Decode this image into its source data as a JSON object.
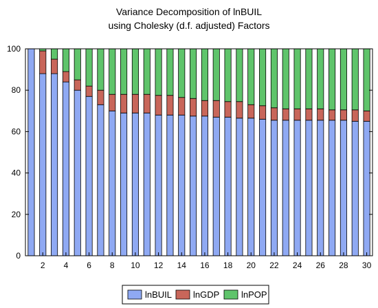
{
  "chart_data": {
    "type": "bar",
    "stacked": true,
    "title": [
      "Variance Decomposition of lnBUIL",
      "using Cholesky (d.f. adjusted) Factors"
    ],
    "xlabel": "",
    "ylabel": "",
    "ylim": [
      0,
      100
    ],
    "yticks": [
      0,
      20,
      40,
      60,
      80,
      100
    ],
    "xticks": [
      2,
      4,
      6,
      8,
      10,
      12,
      14,
      16,
      18,
      20,
      22,
      24,
      26,
      28,
      30
    ],
    "categories": [
      1,
      2,
      3,
      4,
      5,
      6,
      7,
      8,
      9,
      10,
      11,
      12,
      13,
      14,
      15,
      16,
      17,
      18,
      19,
      20,
      21,
      22,
      23,
      24,
      25,
      26,
      27,
      28,
      29,
      30
    ],
    "legend_position": "bottom",
    "grid": false,
    "series": [
      {
        "name": "lnBUIL",
        "color": "#8fa9f3",
        "values": [
          100,
          88,
          88,
          84,
          80,
          77,
          73,
          70,
          69,
          69,
          69,
          68,
          68,
          68,
          67.5,
          67.5,
          67,
          67,
          66.5,
          66.5,
          66,
          65.5,
          65.5,
          65.5,
          65.5,
          65.5,
          65.5,
          65.5,
          65,
          65
        ]
      },
      {
        "name": "lnGDP",
        "color": "#c8665a",
        "values": [
          0,
          11,
          7,
          5,
          5,
          5,
          7,
          8,
          9,
          9,
          9,
          9.5,
          9.5,
          8.5,
          8.5,
          7.5,
          8,
          7.5,
          8,
          6.5,
          6.5,
          6,
          5.5,
          5.5,
          5.5,
          5.5,
          5,
          5,
          5.5,
          5
        ]
      },
      {
        "name": "lnPOP",
        "color": "#5fc46b",
        "values": [
          0,
          1,
          5,
          11,
          15,
          18,
          20,
          22,
          22,
          22,
          22,
          22.5,
          22.5,
          23.5,
          24,
          25,
          25,
          25.5,
          25.5,
          27,
          27.5,
          28.5,
          29,
          29,
          29,
          29,
          29.5,
          29.5,
          29.5,
          30
        ]
      }
    ]
  }
}
